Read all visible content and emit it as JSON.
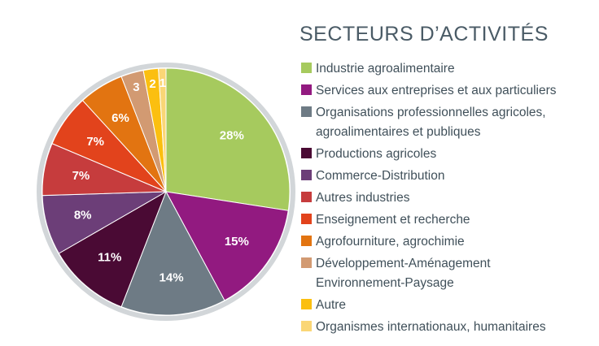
{
  "chart_data": {
    "type": "pie",
    "title": "SECTEURS D’ACTIVITÉS",
    "legend_position": "right",
    "slices": [
      {
        "name": "Industrie agroalimentaire",
        "value": 28,
        "label": "28%",
        "color": "#a6ca5e"
      },
      {
        "name": "Services aux entreprises et aux particuliers",
        "value": 15,
        "label": "15%",
        "color": "#921a80"
      },
      {
        "name": "Organisations professionnelles agricoles, agroalimentaires et publiques",
        "value": 14,
        "label": "14%",
        "color": "#6e7b85"
      },
      {
        "name": "Productions agricoles",
        "value": 11,
        "label": "11%",
        "color": "#4a0a34"
      },
      {
        "name": "Commerce-Distribution",
        "value": 8,
        "label": "8%",
        "color": "#6c3e78"
      },
      {
        "name": "Autres industries",
        "value": 7,
        "label": "7%",
        "color": "#c63c3d"
      },
      {
        "name": "Enseignement et recherche",
        "value": 7,
        "label": "7%",
        "color": "#e2431c"
      },
      {
        "name": "Agrofourniture, agrochimie",
        "value": 6,
        "label": "6%",
        "color": "#e27411"
      },
      {
        "name": "Développement-Aménagement Environnement-Paysage",
        "value": 3,
        "label": "3",
        "color": "#d29a72"
      },
      {
        "name": "Autre",
        "value": 2,
        "label": "2",
        "color": "#fbbf10"
      },
      {
        "name": "Organismes internationaux, humanitaires",
        "value": 1,
        "label": "1",
        "color": "#fad676"
      }
    ],
    "legend_lines": [
      [
        "Industrie agroalimentaire"
      ],
      [
        "Services aux entreprises et aux particuliers"
      ],
      [
        "Organisations professionnelles agricoles,",
        "agroalimentaires et publiques"
      ],
      [
        "Productions agricoles"
      ],
      [
        "Commerce-Distribution"
      ],
      [
        "Autres industries"
      ],
      [
        "Enseignement et recherche"
      ],
      [
        "Agrofourniture, agrochimie"
      ],
      [
        "Développement-Aménagement",
        "Environnement-Paysage"
      ],
      [
        "Autre"
      ],
      [
        "Organismes internationaux, humanitaires"
      ]
    ]
  }
}
